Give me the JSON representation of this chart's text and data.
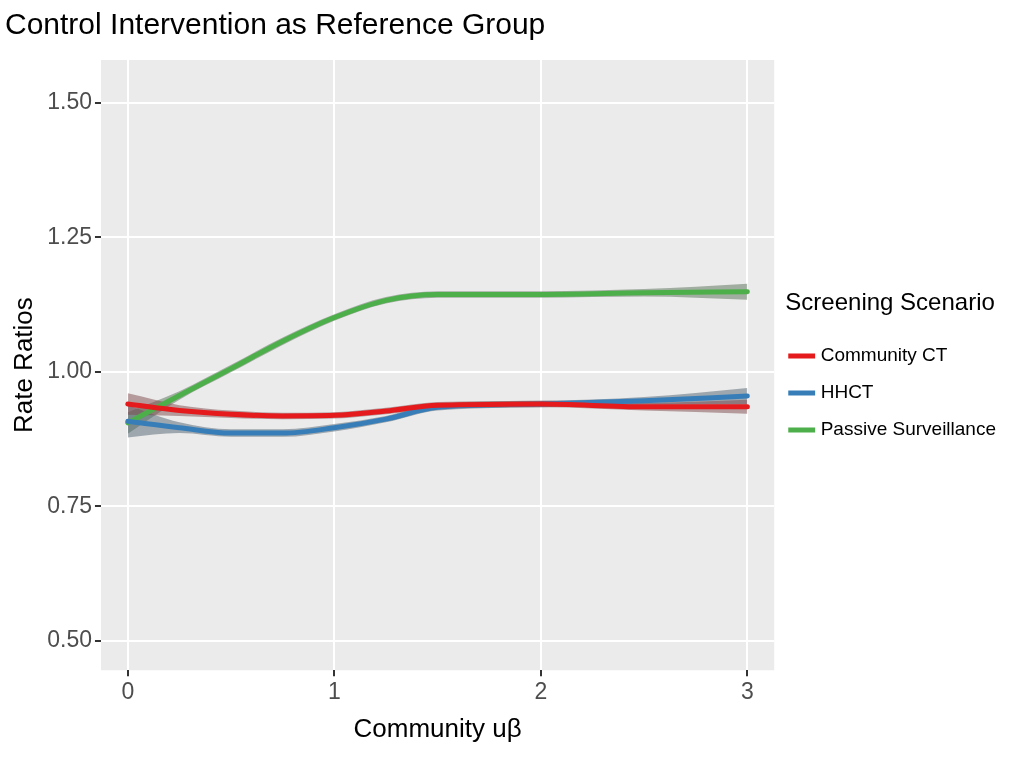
{
  "chart_data": {
    "type": "line",
    "title": "Control Intervention as Reference Group",
    "xlabel": "Community uβ",
    "ylabel": "Rate Ratios",
    "legend_title": "Screening Scenario",
    "legend": "right",
    "grid": true,
    "marker": "none",
    "line_style": "solid",
    "xlim": [
      -0.13,
      3.13
    ],
    "xticks": [
      0,
      1,
      2,
      3
    ],
    "ylim": [
      0.445,
      1.58
    ],
    "yticks": [
      {
        "value": 0.5,
        "label": "0.50"
      },
      {
        "value": 0.75,
        "label": "0.75"
      },
      {
        "value": 1,
        "label": "1.00"
      },
      {
        "value": 1.25,
        "label": "1.25"
      },
      {
        "value": 1.5,
        "label": "1.50"
      }
    ],
    "x": [
      0,
      0.25,
      0.5,
      0.75,
      1,
      1.25,
      1.5,
      2,
      2.5,
      3
    ],
    "series": [
      {
        "name": "Community CT",
        "color": "#e41a1c",
        "values": [
          0.94,
          0.928,
          0.921,
          0.918,
          0.919,
          0.927,
          0.938,
          0.94,
          0.935,
          0.935
        ],
        "lower": [
          0.92,
          0.918,
          0.914,
          0.912,
          0.913,
          0.921,
          0.932,
          0.934,
          0.928,
          0.922
        ],
        "upper": [
          0.96,
          0.938,
          0.928,
          0.924,
          0.925,
          0.933,
          0.944,
          0.946,
          0.942,
          0.948
        ]
      },
      {
        "name": "HHCT",
        "color": "#377eb8",
        "values": [
          0.908,
          0.896,
          0.886,
          0.886,
          0.896,
          0.912,
          0.934,
          0.94,
          0.946,
          0.955
        ],
        "lower": [
          0.878,
          0.886,
          0.879,
          0.879,
          0.889,
          0.906,
          0.928,
          0.934,
          0.939,
          0.94
        ],
        "upper": [
          0.938,
          0.906,
          0.893,
          0.893,
          0.903,
          0.918,
          0.94,
          0.946,
          0.953,
          0.97
        ]
      },
      {
        "name": "Passive Surveillance",
        "color": "#4daf4a",
        "values": [
          0.905,
          0.956,
          1.006,
          1.057,
          1.101,
          1.133,
          1.144,
          1.144,
          1.147,
          1.149
        ],
        "lower": [
          0.885,
          0.948,
          0.999,
          1.05,
          1.095,
          1.127,
          1.138,
          1.138,
          1.14,
          1.134
        ],
        "upper": [
          0.925,
          0.964,
          1.013,
          1.064,
          1.107,
          1.139,
          1.15,
          1.15,
          1.154,
          1.164
        ]
      }
    ]
  }
}
